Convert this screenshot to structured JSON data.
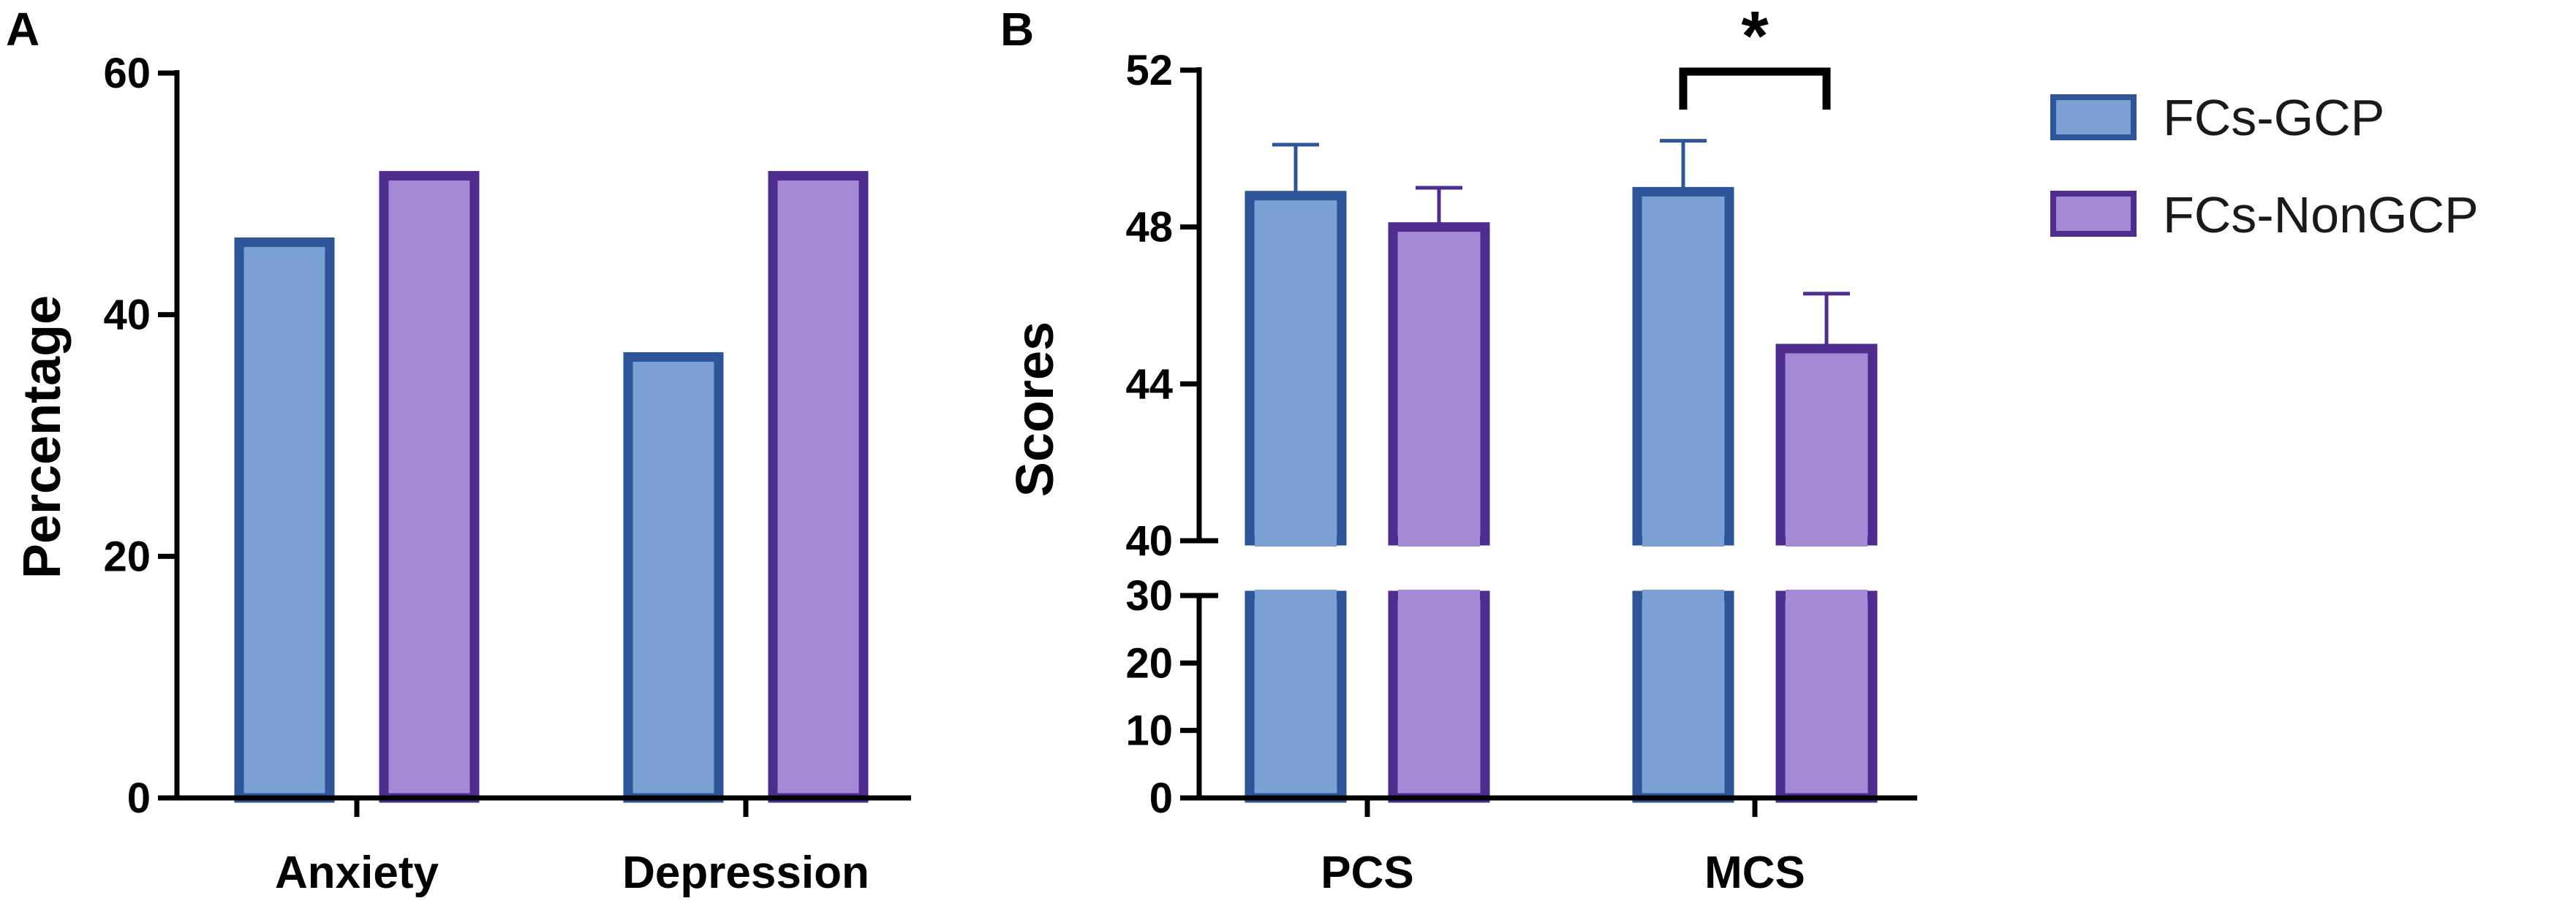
{
  "colors": {
    "gcp_fill": "#7aa0d4",
    "gcp_stroke": "#2e5597",
    "nongcp_fill": "#a48ad4",
    "nongcp_stroke": "#4e2d8f",
    "axis": "#000000"
  },
  "legend": {
    "items": [
      {
        "label": "FCs-GCP",
        "series": 0
      },
      {
        "label": "FCs-NonGCP",
        "series": 1
      }
    ]
  },
  "chart_data": [
    {
      "panel_label": "A",
      "type": "bar",
      "title": "",
      "xlabel": "",
      "ylabel": "Percentage",
      "ylim": [
        0,
        60
      ],
      "yticks": [
        0,
        20,
        40,
        60
      ],
      "categories": [
        "Anxiety",
        "Depression"
      ],
      "series": [
        {
          "name": "FCs-GCP",
          "values": [
            46,
            36.5
          ]
        },
        {
          "name": "FCs-NonGCP",
          "values": [
            51.5,
            51.5
          ]
        }
      ]
    },
    {
      "panel_label": "B",
      "type": "bar",
      "title": "",
      "xlabel": "",
      "ylabel": "Scores",
      "axis_break": {
        "lower_range": [
          0,
          30
        ],
        "upper_range": [
          40,
          52
        ]
      },
      "yticks_lower": [
        0,
        10,
        20,
        30
      ],
      "yticks_upper": [
        40,
        44,
        48,
        52
      ],
      "categories": [
        "PCS",
        "MCS"
      ],
      "series": [
        {
          "name": "FCs-GCP",
          "values": [
            48.8,
            48.9
          ],
          "errors": [
            1.3,
            1.3
          ]
        },
        {
          "name": "FCs-NonGCP",
          "values": [
            48.0,
            44.9
          ],
          "errors": [
            1.0,
            1.4
          ]
        }
      ],
      "annotations": [
        {
          "text": "*",
          "between_category": "MCS",
          "meaning": "significance bracket"
        }
      ]
    }
  ]
}
